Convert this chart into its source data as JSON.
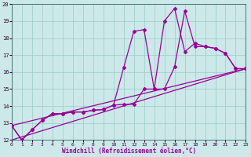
{
  "xlabel": "Windchill (Refroidissement éolien,°C)",
  "xlim": [
    0,
    23
  ],
  "ylim": [
    12,
    20
  ],
  "yticks": [
    12,
    13,
    14,
    15,
    16,
    17,
    18,
    19,
    20
  ],
  "xticks": [
    0,
    1,
    2,
    3,
    4,
    5,
    6,
    7,
    8,
    9,
    10,
    11,
    12,
    13,
    14,
    15,
    16,
    17,
    18,
    19,
    20,
    21,
    22,
    23
  ],
  "bg_color": "#cce8e8",
  "line_color": "#990099",
  "grid_color": "#99cccc",
  "line1_x": [
    0,
    1,
    2,
    3,
    4,
    5,
    6,
    7,
    8,
    9,
    10,
    11,
    12,
    13,
    14,
    15,
    16,
    17,
    18,
    19,
    20,
    21,
    22,
    23
  ],
  "line1_y": [
    12.85,
    12.0,
    12.6,
    13.15,
    13.55,
    13.55,
    13.65,
    13.65,
    13.75,
    13.8,
    14.05,
    16.25,
    18.4,
    18.5,
    15.0,
    19.0,
    19.75,
    17.2,
    17.7,
    17.5,
    17.4,
    17.1,
    16.2,
    16.2
  ],
  "line2_x": [
    0,
    1,
    2,
    3,
    4,
    5,
    6,
    7,
    8,
    9,
    10,
    11,
    12,
    13,
    14,
    15,
    16,
    17,
    18,
    19,
    20,
    21,
    22,
    23
  ],
  "line2_y": [
    12.85,
    12.0,
    12.6,
    13.15,
    13.55,
    13.55,
    13.65,
    13.65,
    13.75,
    13.8,
    14.05,
    14.1,
    14.1,
    15.0,
    15.0,
    15.0,
    16.3,
    19.6,
    17.5,
    17.5,
    17.4,
    17.1,
    16.2,
    16.2
  ],
  "line3_x": [
    0,
    23
  ],
  "line3_y": [
    12.85,
    16.2
  ],
  "line4_x": [
    0,
    23
  ],
  "line4_y": [
    12.0,
    16.2
  ]
}
